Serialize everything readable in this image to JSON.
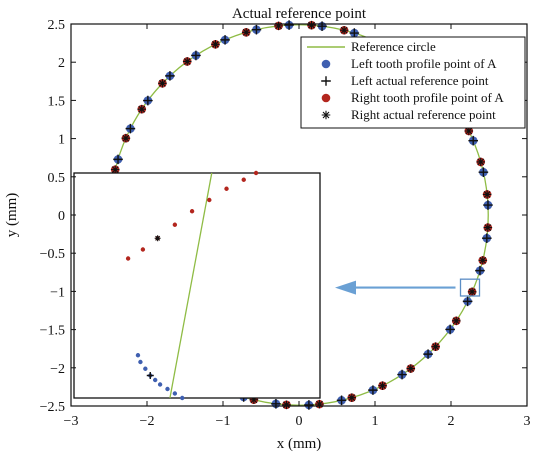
{
  "chart_data": {
    "type": "scatter",
    "title": "Actual reference point",
    "xlabel": "x (mm)",
    "ylabel": "y (mm)",
    "xlim": [
      -3,
      3
    ],
    "ylim": [
      -2.5,
      2.5
    ],
    "x_ticks": [
      -3,
      -2,
      -1,
      0,
      1,
      2,
      3
    ],
    "y_ticks": [
      -2.5,
      -2,
      -1.5,
      -1,
      -0.5,
      0,
      0.5,
      1,
      1.5,
      2,
      2.5
    ],
    "x_tick_labels": [
      "−3",
      "−2",
      "−1",
      "0",
      "1",
      "2",
      "3"
    ],
    "y_tick_labels": [
      "−2.5",
      "−2",
      "−1.5",
      "−1",
      "−0.5",
      "0",
      "0.5",
      "1",
      "1.5",
      "2",
      "2.5"
    ],
    "grid": false,
    "legend_position": "top-right",
    "reference_circle": {
      "center": [
        0,
        0
      ],
      "radius": 2.49
    },
    "tooth_count": 36,
    "tooth_angle_offset_deg": 3,
    "left_right_angle_gap_deg": 3.2,
    "series": [
      {
        "name": "Reference circle",
        "marker": "line",
        "color": "#8fbc45"
      },
      {
        "name": "Left tooth profile point of A",
        "marker": "circle",
        "color": "#3f5fb0"
      },
      {
        "name": "Left actual reference point",
        "marker": "plus",
        "color": "#111111"
      },
      {
        "name": "Right tooth profile point of A",
        "marker": "circle",
        "color": "#b3261e"
      },
      {
        "name": "Right actual reference point",
        "marker": "asterisk",
        "color": "#111111"
      }
    ],
    "zoom_box": {
      "center": [
        2.25,
        -0.95
      ],
      "size": [
        0.25,
        0.22
      ]
    },
    "inset": {
      "right_profile_points": [
        [
          0.22,
          0.62
        ],
        [
          0.28,
          0.66
        ],
        [
          0.34,
          0.71
        ],
        [
          0.41,
          0.77
        ],
        [
          0.48,
          0.83
        ],
        [
          0.55,
          0.88
        ],
        [
          0.62,
          0.93
        ],
        [
          0.69,
          0.97
        ],
        [
          0.74,
          1.0
        ]
      ],
      "left_profile_points": [
        [
          0.26,
          0.19
        ],
        [
          0.27,
          0.16
        ],
        [
          0.29,
          0.13
        ],
        [
          0.31,
          0.1
        ],
        [
          0.33,
          0.08
        ],
        [
          0.35,
          0.06
        ],
        [
          0.38,
          0.04
        ],
        [
          0.41,
          0.02
        ],
        [
          0.44,
          0.0
        ]
      ],
      "circle_line": [
        [
          0.56,
          1.0
        ],
        [
          0.39,
          0.0
        ]
      ]
    },
    "colors": {
      "circle": "#8fbc45",
      "left_points": "#3f5fb0",
      "right_points": "#b3261e",
      "zoom_box": "#5b8dc5",
      "arrow": "#6aa0d4"
    }
  }
}
